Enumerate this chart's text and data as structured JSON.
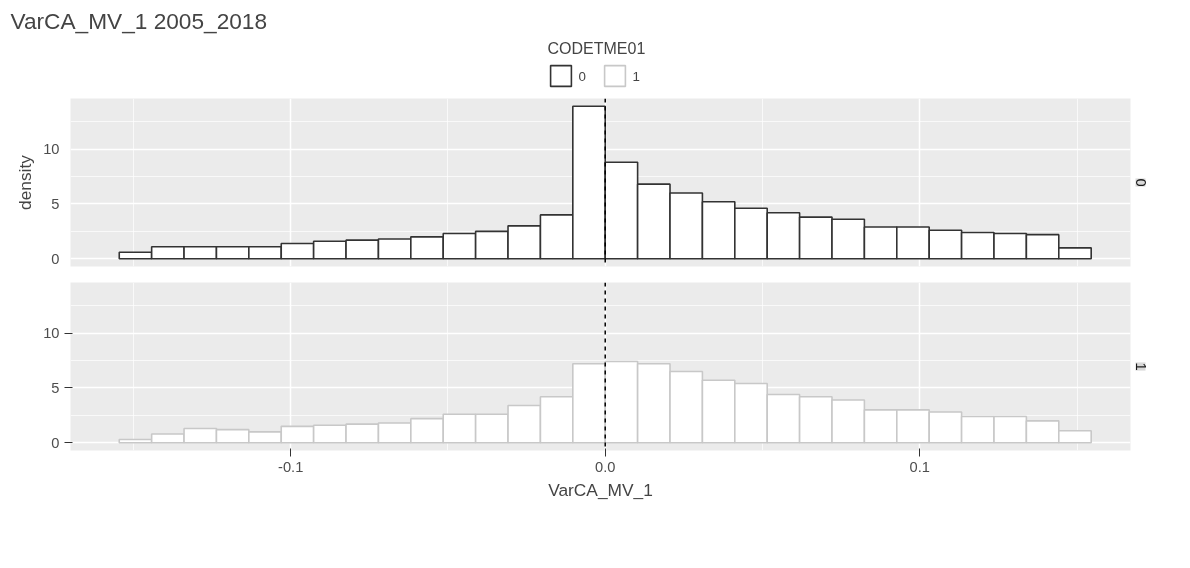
{
  "chart_data": [
    {
      "type": "histogram",
      "title": "VarCA_MV_1 2005_2018",
      "ylabel": "density",
      "legend_title": "CODETME01",
      "legend": "top",
      "grid": true,
      "tick_labels": "y",
      "bins": [
        -0.1545,
        -0.1442,
        -0.1339,
        -0.1236,
        -0.1133,
        -0.103,
        -0.0927,
        -0.0824,
        -0.0721,
        -0.0618,
        -0.0515,
        -0.0412,
        -0.0309,
        -0.0206,
        -0.0103,
        0,
        0.0103,
        0.0206,
        0.0309,
        0.0412,
        0.0515,
        0.0618,
        0.0721,
        0.0824,
        0.0927,
        0.103,
        0.1133,
        0.1236,
        0.1339,
        0.1442,
        0.1545
      ],
      "series": [
        {
          "name": "0",
          "color": "#333333",
          "values": [
            0.6,
            1.1,
            1.1,
            1.1,
            1.1,
            1.4,
            1.6,
            1.7,
            1.8,
            2.0,
            2.3,
            2.5,
            3.0,
            4.0,
            13.9,
            8.8,
            6.8,
            6.0,
            5.2,
            4.6,
            4.2,
            3.8,
            3.6,
            2.9,
            2.9,
            2.6,
            2.4,
            2.3,
            2.2,
            1.0
          ]
        }
      ],
      "xlim": [
        -0.17,
        0.167
      ],
      "xticks": [
        -0.1,
        0.0,
        0.1
      ],
      "ylim": [
        -0.7,
        14.6
      ],
      "yticks": [
        0,
        5,
        10
      ],
      "ref_lines": [
        {
          "axis": "x",
          "value": 0,
          "line_style": "dashed",
          "color": "#000000"
        }
      ]
    },
    {
      "type": "histogram",
      "xlabel": "VarCA_MV_1",
      "grid": true,
      "bins": [
        -0.1545,
        -0.1442,
        -0.1339,
        -0.1236,
        -0.1133,
        -0.103,
        -0.0927,
        -0.0824,
        -0.0721,
        -0.0618,
        -0.0515,
        -0.0412,
        -0.0309,
        -0.0206,
        -0.0103,
        0,
        0.0103,
        0.0206,
        0.0309,
        0.0412,
        0.0515,
        0.0618,
        0.0721,
        0.0824,
        0.0927,
        0.103,
        0.1133,
        0.1236,
        0.1339,
        0.1442,
        0.1545
      ],
      "series": [
        {
          "name": "1",
          "color": "#c8c8c8",
          "values": [
            0.3,
            0.8,
            1.3,
            1.2,
            1.0,
            1.5,
            1.6,
            1.7,
            1.8,
            2.2,
            2.6,
            2.6,
            3.4,
            4.2,
            7.2,
            7.4,
            7.2,
            6.5,
            5.7,
            5.4,
            4.4,
            4.2,
            3.9,
            3.0,
            3.0,
            2.8,
            2.4,
            2.4,
            2.0,
            1.1
          ]
        }
      ],
      "xlim": [
        -0.17,
        0.167
      ],
      "xticks": [
        {
          "value": -0.1,
          "label": "-0.1"
        },
        {
          "value": 0.0,
          "label": "0.0"
        },
        {
          "value": 0.1,
          "label": "0.1"
        }
      ],
      "ylim": [
        -0.7,
        14.6
      ],
      "yticks": [
        0,
        5,
        10
      ],
      "ref_lines": [
        {
          "axis": "x",
          "value": 0,
          "line_style": "dashed",
          "color": "#000000"
        }
      ]
    }
  ]
}
